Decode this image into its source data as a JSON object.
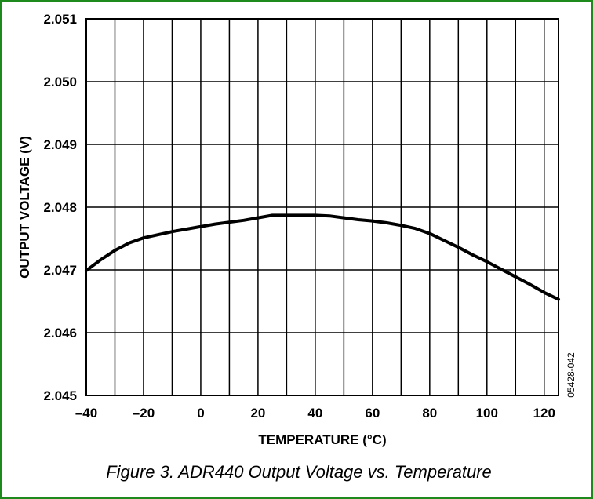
{
  "figure": {
    "caption": "Figure 3. ADR440 Output Voltage vs. Temperature",
    "code": "05428-042",
    "frame_color": "#1e8a1e"
  },
  "chart_data": {
    "type": "line",
    "xlabel": "TEMPERATURE (°C)",
    "ylabel": "OUTPUT VOLTAGE (V)",
    "xlim": [
      -40,
      125
    ],
    "ylim": [
      2.045,
      2.051
    ],
    "x_ticks": [
      -40,
      -20,
      0,
      20,
      40,
      60,
      80,
      100,
      120
    ],
    "x_tick_labels": [
      "–40",
      "–20",
      "0",
      "20",
      "40",
      "60",
      "80",
      "100",
      "120"
    ],
    "y_ticks": [
      2.045,
      2.046,
      2.047,
      2.048,
      2.049,
      2.05,
      2.051
    ],
    "y_tick_labels": [
      "2.045",
      "2.046",
      "2.047",
      "2.048",
      "2.049",
      "2.050",
      "2.051"
    ],
    "x_grid_step": 10,
    "grid": true,
    "series": [
      {
        "color": "#000000",
        "x": [
          -40,
          -35,
          -30,
          -25,
          -20,
          -15,
          -10,
          -5,
          0,
          5,
          10,
          15,
          20,
          25,
          30,
          35,
          40,
          45,
          50,
          55,
          60,
          65,
          70,
          75,
          80,
          85,
          90,
          95,
          100,
          105,
          110,
          115,
          120,
          125
        ],
        "y": [
          2.04699,
          2.04716,
          2.04731,
          2.04743,
          2.04751,
          2.04756,
          2.04761,
          2.04765,
          2.04769,
          2.04773,
          2.04776,
          2.04779,
          2.04783,
          2.04787,
          2.04787,
          2.04787,
          2.04787,
          2.04786,
          2.04783,
          2.0478,
          2.04778,
          2.04775,
          2.04771,
          2.04766,
          2.04758,
          2.04747,
          2.04736,
          2.04724,
          2.04713,
          2.04701,
          2.04689,
          2.04677,
          2.04664,
          2.04653
        ]
      }
    ]
  }
}
